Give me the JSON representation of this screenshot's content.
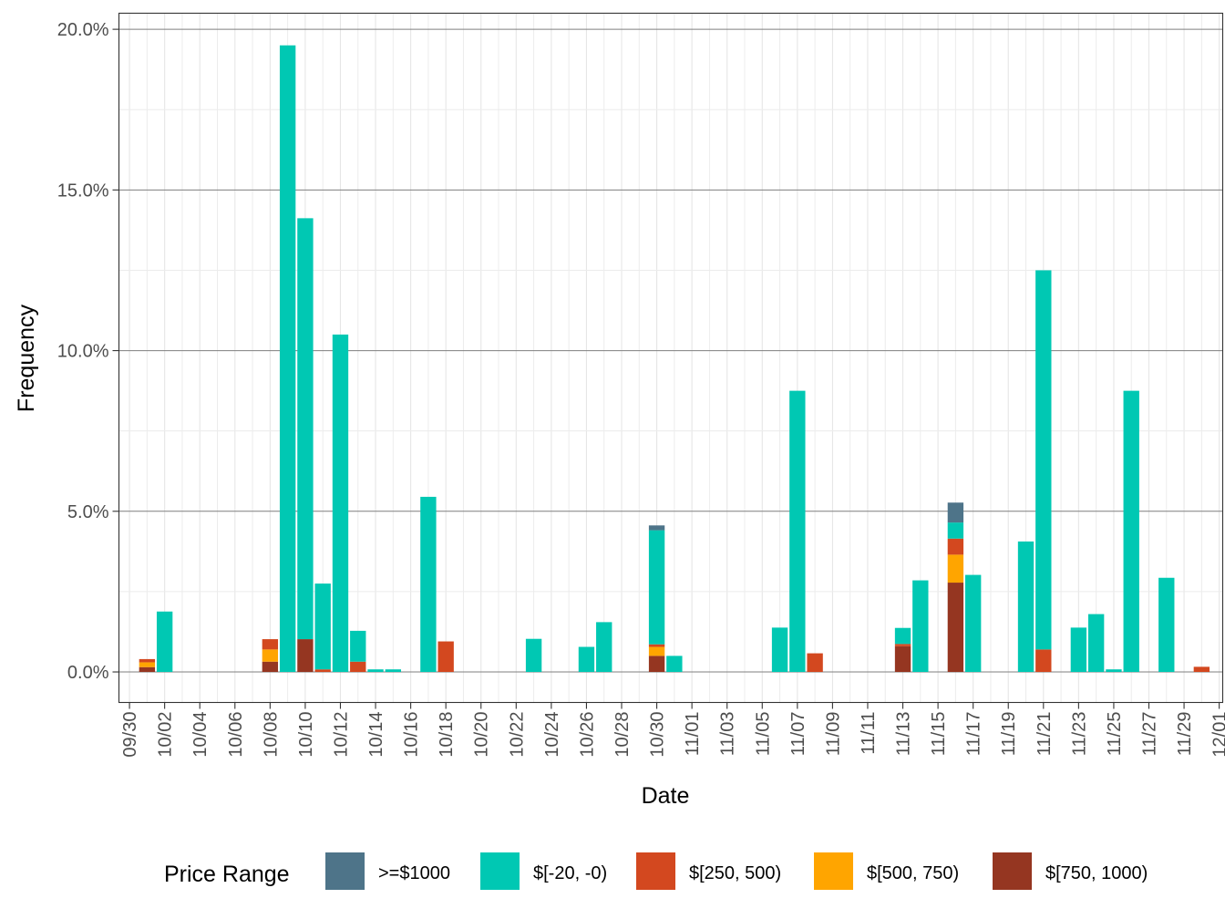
{
  "chart_data": {
    "type": "bar",
    "stacked": true,
    "xlabel": "Date",
    "ylabel": "Frequency",
    "ylim": [
      -0.95,
      20.5
    ],
    "y_ticks": [
      0,
      5,
      10,
      15,
      20
    ],
    "y_tick_format": "percent_1dp",
    "x_tick_labels": [
      "09/30",
      "10/02",
      "10/04",
      "10/06",
      "10/08",
      "10/10",
      "10/12",
      "10/14",
      "10/16",
      "10/18",
      "10/20",
      "10/22",
      "10/24",
      "10/26",
      "10/28",
      "10/30",
      "11/01",
      "11/03",
      "11/05",
      "11/07",
      "11/09",
      "11/11",
      "11/13",
      "11/15",
      "11/17",
      "11/19",
      "11/21",
      "11/23",
      "11/25",
      "11/27",
      "11/29",
      "12/01"
    ],
    "x_range_days": [
      -0.6,
      62.2
    ],
    "grid": true,
    "legend": {
      "title": "Price Range",
      "position": "bottom",
      "entries": [
        ">=$1000",
        "$[-20, -0)",
        "$[250, 500)",
        "$[500, 750)",
        "$[750, 1000)"
      ]
    },
    "series_colors": {
      ">=$1000": "#4e7489",
      "$[-20, -0)": "#00c8b3",
      "$[250, 500)": "#d3481f",
      "$[500, 750)": "#ffa500",
      "$[750, 1000)": "#953621"
    },
    "stack_order": [
      "$[750, 1000)",
      "$[500, 750)",
      "$[250, 500)",
      "$[-20, -0)",
      ">=$1000"
    ],
    "bars": [
      {
        "date": "10/01",
        "segments": {
          "$[750, 1000)": 0.15,
          "$[500, 750)": 0.15,
          "$[250, 500)": 0.1
        }
      },
      {
        "date": "10/02",
        "segments": {
          "$[-20, -0)": 1.88
        }
      },
      {
        "date": "10/08",
        "segments": {
          "$[750, 1000)": 0.32,
          "$[500, 750)": 0.38,
          "$[250, 500)": 0.32
        }
      },
      {
        "date": "10/09",
        "segments": {
          "$[-20, -0)": 19.5
        }
      },
      {
        "date": "10/10",
        "segments": {
          "$[750, 1000)": 1.02,
          "$[-20, -0)": 13.1
        }
      },
      {
        "date": "10/11",
        "segments": {
          "$[250, 500)": 0.08,
          "$[-20, -0)": 2.67
        }
      },
      {
        "date": "10/12",
        "segments": {
          "$[-20, -0)": 10.5
        }
      },
      {
        "date": "10/13",
        "segments": {
          "$[250, 500)": 0.32,
          "$[-20, -0)": 0.96
        }
      },
      {
        "date": "10/14",
        "segments": {
          "$[-20, -0)": 0.08
        }
      },
      {
        "date": "10/15",
        "segments": {
          "$[-20, -0)": 0.08
        }
      },
      {
        "date": "10/17",
        "segments": {
          "$[-20, -0)": 5.45
        }
      },
      {
        "date": "10/18",
        "segments": {
          "$[250, 500)": 0.95
        }
      },
      {
        "date": "10/23",
        "segments": {
          "$[-20, -0)": 1.03
        }
      },
      {
        "date": "10/26",
        "segments": {
          "$[-20, -0)": 0.78
        }
      },
      {
        "date": "10/27",
        "segments": {
          "$[-20, -0)": 1.55
        }
      },
      {
        "date": "10/30",
        "segments": {
          "$[750, 1000)": 0.5,
          "$[500, 750)": 0.28,
          "$[250, 500)": 0.08,
          "$[-20, -0)": 3.55,
          ">=$1000": 0.15
        }
      },
      {
        "date": "10/31",
        "segments": {
          "$[-20, -0)": 0.5
        }
      },
      {
        "date": "11/06",
        "segments": {
          "$[-20, -0)": 1.38
        }
      },
      {
        "date": "11/07",
        "segments": {
          "$[-20, -0)": 8.75
        }
      },
      {
        "date": "11/08",
        "segments": {
          "$[250, 500)": 0.58
        }
      },
      {
        "date": "11/13",
        "segments": {
          "$[750, 1000)": 0.8,
          "$[250, 500)": 0.07,
          "$[-20, -0)": 0.5
        }
      },
      {
        "date": "11/14",
        "segments": {
          "$[-20, -0)": 2.85
        }
      },
      {
        "date": "11/16",
        "segments": {
          "$[750, 1000)": 2.78,
          "$[500, 750)": 0.87,
          "$[250, 500)": 0.5,
          "$[-20, -0)": 0.5,
          ">=$1000": 0.62
        }
      },
      {
        "date": "11/17",
        "segments": {
          "$[-20, -0)": 3.02
        }
      },
      {
        "date": "11/20",
        "segments": {
          "$[-20, -0)": 4.06
        }
      },
      {
        "date": "11/21",
        "segments": {
          "$[250, 500)": 0.7,
          "$[-20, -0)": 11.8
        }
      },
      {
        "date": "11/23",
        "segments": {
          "$[-20, -0)": 1.38
        }
      },
      {
        "date": "11/24",
        "segments": {
          "$[-20, -0)": 1.8
        }
      },
      {
        "date": "11/25",
        "segments": {
          "$[-20, -0)": 0.08
        }
      },
      {
        "date": "11/26",
        "segments": {
          "$[-20, -0)": 8.75
        }
      },
      {
        "date": "11/28",
        "segments": {
          "$[-20, -0)": 2.93
        }
      },
      {
        "date": "11/30",
        "segments": {
          "$[250, 500)": 0.16
        }
      }
    ]
  }
}
